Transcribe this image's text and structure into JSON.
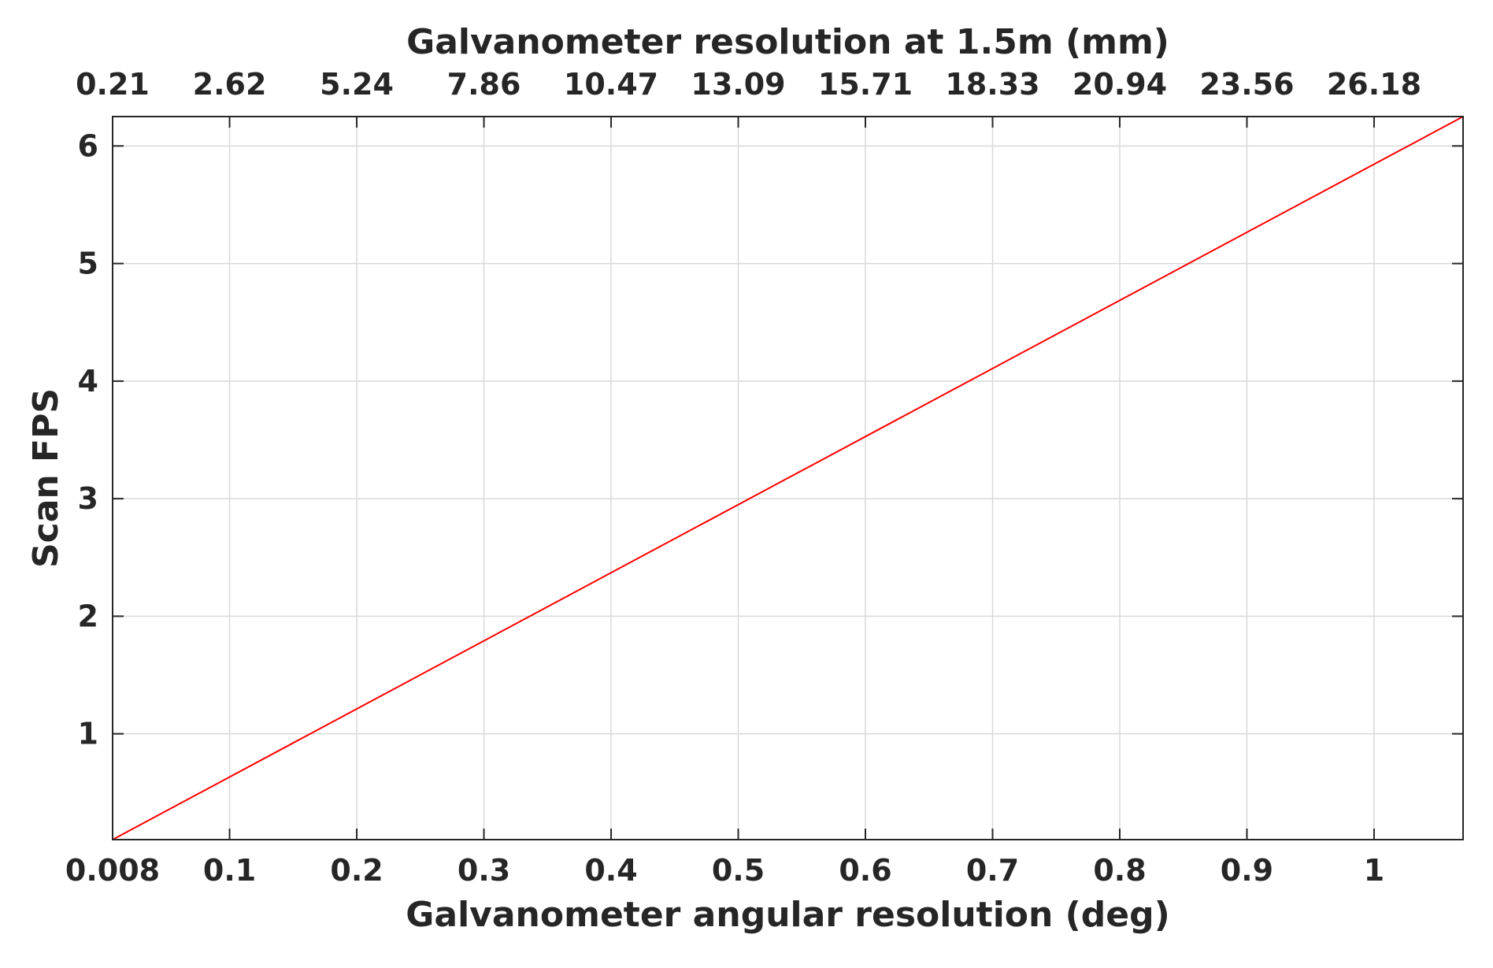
{
  "chart_data": {
    "type": "line",
    "title": "",
    "xlabel": "Galvanometer angular resolution (deg)",
    "ylabel": "Scan FPS",
    "x2label": "Galvanometer resolution at 1.5m (mm)",
    "xlim": [
      0.008,
      1.07
    ],
    "ylim": [
      0.1,
      6.25
    ],
    "x_ticks": [
      0.008,
      0.1,
      0.2,
      0.3,
      0.4,
      0.5,
      0.6,
      0.7,
      0.8,
      0.9,
      1
    ],
    "x_tick_labels": [
      "0.008",
      "0.1",
      "0.2",
      "0.3",
      "0.4",
      "0.5",
      "0.6",
      "0.7",
      "0.8",
      "0.9",
      "1"
    ],
    "x2_ticks": [
      0.008,
      0.1,
      0.2,
      0.3,
      0.4,
      0.5,
      0.6,
      0.7,
      0.8,
      0.9,
      1
    ],
    "x2_tick_labels": [
      "0.21",
      "2.62",
      "5.24",
      "7.86",
      "10.47",
      "13.09",
      "15.71",
      "18.33",
      "20.94",
      "23.56",
      "26.18"
    ],
    "y_ticks": [
      1,
      2,
      3,
      4,
      5,
      6
    ],
    "y_tick_labels": [
      "1",
      "2",
      "3",
      "4",
      "5",
      "6"
    ],
    "grid": true,
    "series": [
      {
        "name": "",
        "color": "#ff0000",
        "x": [
          0.008,
          1.07
        ],
        "y": [
          0.1,
          6.25
        ]
      }
    ]
  }
}
